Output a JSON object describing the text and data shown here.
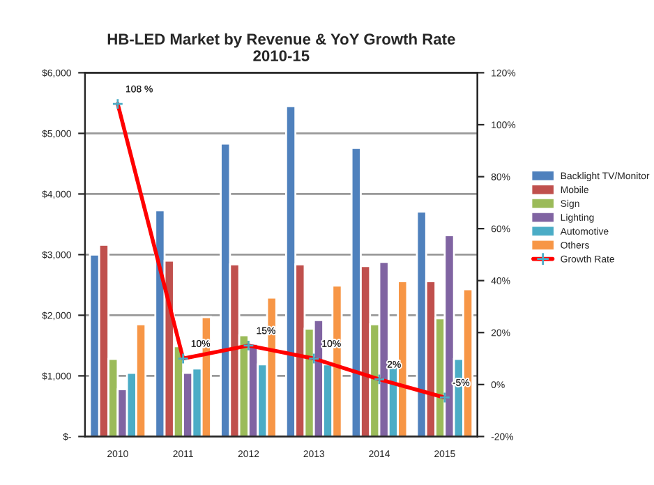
{
  "chart_data": {
    "type": "bar",
    "title": "HB-LED Market by Revenue & YoY Growth Rate\n2010-15",
    "categories": [
      "2010",
      "2011",
      "2012",
      "2013",
      "2014",
      "2015"
    ],
    "series": [
      {
        "name": "Backlight TV/Monitor",
        "color": "#4f81bd",
        "values": [
          3000,
          3730,
          4830,
          5450,
          4760,
          3710
        ]
      },
      {
        "name": "Mobile",
        "color": "#c0504d",
        "values": [
          3160,
          2900,
          2840,
          2840,
          2810,
          2560
        ]
      },
      {
        "name": "Sign",
        "color": "#9bbb59",
        "values": [
          1280,
          1490,
          1670,
          1780,
          1850,
          1950
        ]
      },
      {
        "name": "Lighting",
        "color": "#8064a2",
        "values": [
          780,
          1050,
          1530,
          1920,
          2880,
          3320
        ]
      },
      {
        "name": "Automotive",
        "color": "#4bacc6",
        "values": [
          1050,
          1120,
          1190,
          1190,
          1190,
          1280
        ]
      },
      {
        "name": "Others",
        "color": "#f79646",
        "values": [
          1850,
          1970,
          2290,
          2490,
          2560,
          2430
        ]
      },
      {
        "name": "Growth Rate",
        "type": "line",
        "axis": "y2",
        "color": "#ff0000",
        "marker": "cross",
        "values": [
          108,
          10,
          15,
          10,
          2,
          -5
        ],
        "value_labels": [
          "108 %",
          "10%",
          "15%",
          "10%",
          "2%",
          "-5%"
        ]
      }
    ],
    "ylim": [
      0,
      6000
    ],
    "yticks": [
      {
        "value": 0,
        "label": "$-"
      },
      {
        "value": 1000,
        "label": "$1,000"
      },
      {
        "value": 2000,
        "label": "$2,000"
      },
      {
        "value": 3000,
        "label": "$3,000"
      },
      {
        "value": 4000,
        "label": "$4,000"
      },
      {
        "value": 5000,
        "label": "$5,000"
      },
      {
        "value": 6000,
        "label": "$6,000"
      }
    ],
    "y2lim": [
      -20,
      120
    ],
    "y2ticks": [
      {
        "value": -20,
        "label": "-20%"
      },
      {
        "value": 0,
        "label": "0%"
      },
      {
        "value": 20,
        "label": "20%"
      },
      {
        "value": 40,
        "label": "40%"
      },
      {
        "value": 60,
        "label": "60%"
      },
      {
        "value": 80,
        "label": "80%"
      },
      {
        "value": 100,
        "label": "100%"
      },
      {
        "value": 120,
        "label": "120%"
      }
    ],
    "grid": "y",
    "legend": "right"
  }
}
